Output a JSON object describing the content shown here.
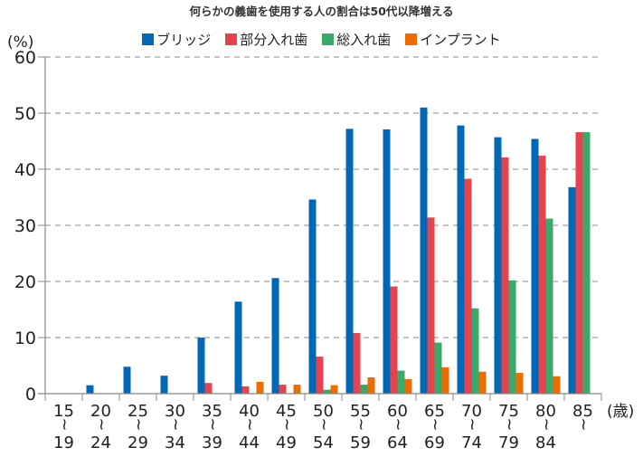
{
  "chart_data": {
    "type": "bar",
    "title": "何らかの義歯を使用する人の割合は50代以降増える",
    "ylabel": "(%)",
    "xlabel": "(歳)",
    "ylim": [
      0,
      60
    ],
    "yticks": [
      0,
      10,
      20,
      30,
      40,
      50,
      60
    ],
    "grid": true,
    "legend_position": "top-center",
    "categories": [
      {
        "from": "15",
        "sep": "〜",
        "to": "19"
      },
      {
        "from": "20",
        "sep": "〜",
        "to": "24"
      },
      {
        "from": "25",
        "sep": "〜",
        "to": "29"
      },
      {
        "from": "30",
        "sep": "〜",
        "to": "34"
      },
      {
        "from": "35",
        "sep": "〜",
        "to": "39"
      },
      {
        "from": "40",
        "sep": "〜",
        "to": "44"
      },
      {
        "from": "45",
        "sep": "〜",
        "to": "49"
      },
      {
        "from": "50",
        "sep": "〜",
        "to": "54"
      },
      {
        "from": "55",
        "sep": "〜",
        "to": "59"
      },
      {
        "from": "60",
        "sep": "〜",
        "to": "64"
      },
      {
        "from": "65",
        "sep": "〜",
        "to": "69"
      },
      {
        "from": "70",
        "sep": "〜",
        "to": "74"
      },
      {
        "from": "75",
        "sep": "〜",
        "to": "79"
      },
      {
        "from": "80",
        "sep": "〜",
        "to": "84"
      },
      {
        "from": "85",
        "sep": "〜",
        "to": ""
      }
    ],
    "series": [
      {
        "name": "ブリッジ",
        "color": "#0068b7",
        "values": [
          0,
          1.5,
          4.8,
          3.2,
          10.0,
          16.4,
          20.6,
          34.6,
          47.2,
          47.1,
          51.0,
          47.8,
          45.7,
          45.4,
          36.8
        ]
      },
      {
        "name": "部分入れ歯",
        "color": "#e5434e",
        "values": [
          0,
          0,
          0,
          0,
          1.9,
          1.3,
          1.6,
          6.6,
          10.8,
          19.1,
          31.4,
          38.3,
          42.1,
          42.4,
          46.6
        ]
      },
      {
        "name": "総入れ歯",
        "color": "#3aaa6a",
        "values": [
          0,
          0,
          0,
          0,
          0,
          0,
          0,
          0.7,
          1.6,
          4.1,
          9.1,
          15.2,
          20.2,
          31.2,
          46.6
        ]
      },
      {
        "name": "インプラント",
        "color": "#ec6c00",
        "values": [
          0,
          0,
          0,
          0,
          0,
          2.1,
          1.6,
          1.5,
          2.9,
          2.6,
          4.7,
          3.9,
          3.7,
          3.1,
          0
        ]
      }
    ]
  }
}
